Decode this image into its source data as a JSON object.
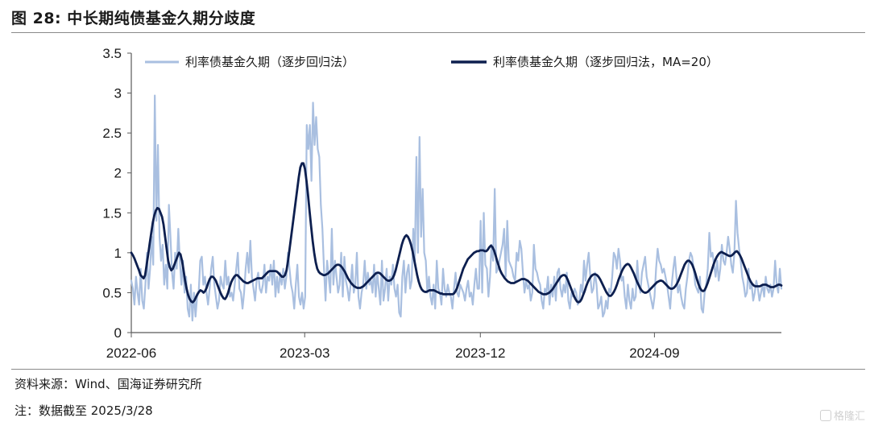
{
  "figure": {
    "title": "图 28:  中长期纯债基金久期分歧度",
    "source": "资料来源：Wind、国海证券研究所",
    "note": "注：数据截至 2025/3/28",
    "watermark": "格隆汇"
  },
  "chart_data": {
    "type": "line",
    "title": "中长期纯债基金久期分歧度",
    "xlabel": "",
    "ylabel": "",
    "ylim": [
      0,
      3.5
    ],
    "yticks": [
      "0",
      "0.5",
      "1",
      "1.5",
      "2",
      "2.5",
      "3",
      "3.5"
    ],
    "xticks": [
      "2022-06",
      "2023-03",
      "2023-12",
      "2024-09"
    ],
    "grid": false,
    "legend_position": "top",
    "colors": {
      "raw": "#a9bfe0",
      "ma": "#0d1f4f"
    },
    "series": [
      {
        "name": "利率债基金久期（逐步回归法）",
        "values": [
          0.65,
          0.55,
          0.35,
          0.7,
          0.5,
          0.35,
          0.8,
          0.4,
          0.3,
          0.6,
          1.0,
          0.55,
          0.8,
          1.2,
          0.85,
          2.97,
          1.4,
          2.35,
          1.2,
          0.9,
          1.1,
          0.6,
          0.85,
          0.55,
          1.6,
          1.2,
          0.75,
          0.55,
          1.0,
          0.8,
          1.3,
          0.9,
          0.6,
          0.9,
          0.5,
          0.7,
          0.3,
          0.2,
          0.6,
          0.15,
          0.5,
          0.2,
          0.45,
          0.5,
          0.9,
          0.95,
          0.6,
          0.7,
          0.5,
          0.35,
          0.55,
          0.8,
          0.95,
          0.6,
          0.45,
          0.3,
          0.4,
          0.7,
          0.6,
          0.55,
          0.9,
          0.6,
          0.7,
          0.45,
          0.5,
          0.4,
          0.6,
          0.8,
          1.0,
          0.55,
          0.5,
          0.3,
          0.5,
          0.8,
          1.0,
          0.75,
          1.15,
          0.7,
          0.55,
          0.4,
          0.65,
          0.75,
          0.55,
          0.5,
          0.6,
          0.85,
          0.5,
          0.7,
          0.65,
          0.85,
          0.6,
          0.9,
          0.45,
          0.7,
          0.5,
          0.75,
          0.6,
          0.8,
          0.55,
          0.7,
          1.0,
          0.8,
          0.6,
          0.5,
          0.3,
          0.6,
          0.85,
          0.45,
          0.35,
          0.5,
          0.3,
          0.45,
          2.6,
          2.3,
          2.6,
          1.9,
          2.88,
          2.35,
          2.7,
          2.3,
          2.2,
          1.6,
          1.3,
          0.8,
          0.4,
          0.9,
          0.7,
          0.5,
          1.3,
          0.6,
          0.9,
          0.7,
          0.5,
          0.6,
          1.0,
          0.45,
          0.95,
          0.65,
          0.55,
          0.4,
          0.6,
          0.85,
          0.5,
          0.6,
          1.0,
          0.45,
          0.3,
          0.5,
          0.6,
          0.9,
          0.55,
          0.75,
          0.6,
          0.65,
          0.5,
          0.85,
          0.45,
          0.75,
          0.55,
          0.35,
          0.9,
          0.4,
          0.55,
          0.8,
          0.4,
          0.7,
          0.6,
          0.85,
          0.55,
          0.45,
          0.6,
          0.25,
          0.2,
          0.7,
          0.9,
          0.5,
          0.75,
          0.85,
          0.55,
          0.65,
          1.3,
          0.9,
          2.2,
          1.0,
          2.45,
          1.2,
          1.8,
          1.0,
          0.9,
          0.5,
          0.7,
          0.45,
          0.35,
          0.6,
          0.3,
          0.9,
          0.55,
          0.5,
          0.35,
          0.8,
          0.55,
          0.45,
          0.6,
          0.5,
          0.45,
          0.3,
          0.55,
          0.75,
          0.5,
          0.45,
          0.6,
          0.55,
          0.5,
          0.4,
          0.55,
          0.65,
          0.45,
          0.5,
          0.35,
          0.6,
          0.8,
          0.55,
          0.55,
          1.4,
          0.5,
          1.5,
          0.85,
          0.8,
          0.45,
          0.7,
          1.1,
          0.9,
          1.8,
          0.75,
          0.8,
          0.9,
          1.0,
          1.1,
          1.3,
          0.7,
          1.4,
          0.9,
          0.85,
          0.8,
          0.7,
          0.65,
          1.0,
          0.9,
          1.15,
          1.05,
          0.75,
          0.5,
          0.65,
          0.55,
          0.6,
          0.4,
          0.5,
          1.1,
          0.8,
          0.75,
          0.65,
          0.6,
          0.4,
          0.3,
          0.55,
          0.5,
          0.7,
          0.35,
          0.6,
          0.45,
          0.7,
          0.4,
          0.75,
          0.8,
          0.55,
          0.45,
          0.6,
          0.5,
          0.75,
          0.4,
          0.3,
          0.5,
          0.45,
          0.55,
          0.5,
          0.35,
          0.4,
          0.6,
          0.5,
          0.9,
          0.65,
          0.85,
          1.0,
          0.7,
          0.5,
          0.55,
          0.75,
          0.6,
          0.3,
          0.35,
          0.45,
          0.2,
          0.25,
          0.4,
          0.3,
          0.55,
          0.5,
          0.7,
          1.0,
          0.95,
          0.8,
          1.05,
          0.9,
          0.65,
          0.7,
          0.45,
          0.3,
          0.6,
          0.4,
          0.3,
          0.55,
          0.4,
          0.45,
          0.9,
          0.6,
          0.5,
          0.75,
          0.85,
          0.95,
          0.7,
          0.6,
          0.5,
          0.4,
          0.3,
          0.45,
          0.8,
          1.05,
          0.9,
          0.85,
          0.75,
          0.8,
          0.7,
          0.6,
          0.45,
          0.3,
          0.6,
          0.8,
          0.95,
          0.7,
          0.5,
          0.6,
          0.45,
          0.35,
          0.3,
          0.55,
          0.7,
          0.9,
          1.0,
          0.95,
          0.8,
          0.6,
          0.55,
          0.5,
          0.7,
          0.3,
          0.25,
          0.5,
          0.6,
          0.8,
          1.25,
          0.95,
          1.0,
          0.85,
          0.7,
          0.9,
          0.65,
          0.8,
          1.1,
          0.9,
          0.85,
          1.0,
          1.2,
          1.05,
          0.85,
          0.75,
          1.0,
          1.65,
          1.25,
          1.05,
          0.9,
          0.7,
          0.6,
          0.45,
          0.5,
          0.8,
          0.55,
          0.6,
          0.4,
          0.5,
          0.65,
          0.55,
          0.4,
          0.5,
          0.6,
          0.45,
          0.7,
          0.55,
          0.5,
          0.6,
          0.45,
          0.55,
          0.9,
          0.6,
          0.5,
          0.8,
          0.55
        ]
      },
      {
        "name": "利率债基金久期（逐步回归法，MA=20）",
        "values": [
          1.0,
          0.97,
          0.93,
          0.88,
          0.83,
          0.78,
          0.72,
          0.7,
          0.68,
          0.72,
          0.85,
          0.98,
          1.12,
          1.25,
          1.38,
          1.47,
          1.53,
          1.56,
          1.55,
          1.5,
          1.45,
          1.35,
          1.2,
          1.05,
          0.9,
          0.82,
          0.78,
          0.8,
          0.85,
          0.9,
          0.95,
          1.0,
          0.98,
          0.9,
          0.78,
          0.65,
          0.55,
          0.47,
          0.42,
          0.39,
          0.38,
          0.4,
          0.44,
          0.48,
          0.51,
          0.53,
          0.52,
          0.5,
          0.52,
          0.56,
          0.62,
          0.67,
          0.7,
          0.7,
          0.68,
          0.65,
          0.6,
          0.55,
          0.5,
          0.46,
          0.43,
          0.42,
          0.45,
          0.5,
          0.57,
          0.63,
          0.67,
          0.7,
          0.72,
          0.72,
          0.7,
          0.68,
          0.66,
          0.64,
          0.63,
          0.62,
          0.62,
          0.63,
          0.64,
          0.65,
          0.66,
          0.67,
          0.68,
          0.68,
          0.68,
          0.68,
          0.7,
          0.72,
          0.74,
          0.76,
          0.77,
          0.77,
          0.77,
          0.77,
          0.77,
          0.76,
          0.74,
          0.72,
          0.7,
          0.7,
          0.72,
          0.78,
          0.9,
          1.05,
          1.2,
          1.35,
          1.5,
          1.65,
          1.8,
          1.95,
          2.07,
          2.12,
          2.12,
          2.05,
          1.9,
          1.72,
          1.52,
          1.33,
          1.15,
          1.0,
          0.88,
          0.8,
          0.76,
          0.74,
          0.73,
          0.72,
          0.72,
          0.73,
          0.74,
          0.76,
          0.78,
          0.8,
          0.82,
          0.84,
          0.85,
          0.85,
          0.84,
          0.82,
          0.79,
          0.76,
          0.72,
          0.68,
          0.65,
          0.62,
          0.6,
          0.58,
          0.57,
          0.56,
          0.56,
          0.56,
          0.57,
          0.58,
          0.6,
          0.62,
          0.64,
          0.66,
          0.68,
          0.7,
          0.72,
          0.74,
          0.75,
          0.75,
          0.74,
          0.72,
          0.7,
          0.68,
          0.66,
          0.65,
          0.65,
          0.66,
          0.68,
          0.72,
          0.78,
          0.86,
          0.94,
          1.02,
          1.1,
          1.16,
          1.2,
          1.22,
          1.2,
          1.16,
          1.1,
          1.02,
          0.92,
          0.82,
          0.72,
          0.64,
          0.58,
          0.54,
          0.52,
          0.51,
          0.51,
          0.52,
          0.53,
          0.53,
          0.53,
          0.53,
          0.52,
          0.51,
          0.5,
          0.49,
          0.49,
          0.48,
          0.48,
          0.48,
          0.48,
          0.48,
          0.48,
          0.48,
          0.49,
          0.52,
          0.56,
          0.62,
          0.68,
          0.74,
          0.8,
          0.84,
          0.88,
          0.92,
          0.94,
          0.96,
          0.98,
          1.0,
          1.01,
          1.02,
          1.02,
          1.03,
          1.03,
          1.03,
          1.02,
          1.02,
          1.04,
          1.07,
          1.09,
          1.07,
          1.03,
          0.97,
          0.9,
          0.84,
          0.78,
          0.74,
          0.71,
          0.68,
          0.66,
          0.64,
          0.63,
          0.62,
          0.62,
          0.62,
          0.63,
          0.64,
          0.65,
          0.66,
          0.67,
          0.67,
          0.67,
          0.66,
          0.65,
          0.63,
          0.61,
          0.59,
          0.57,
          0.55,
          0.53,
          0.51,
          0.5,
          0.49,
          0.48,
          0.48,
          0.48,
          0.49,
          0.5,
          0.52,
          0.54,
          0.57,
          0.6,
          0.63,
          0.66,
          0.69,
          0.71,
          0.72,
          0.72,
          0.7,
          0.66,
          0.61,
          0.56,
          0.51,
          0.46,
          0.42,
          0.39,
          0.38,
          0.39,
          0.42,
          0.47,
          0.52,
          0.58,
          0.63,
          0.67,
          0.7,
          0.72,
          0.73,
          0.73,
          0.72,
          0.7,
          0.67,
          0.63,
          0.59,
          0.55,
          0.51,
          0.48,
          0.46,
          0.46,
          0.48,
          0.51,
          0.55,
          0.6,
          0.66,
          0.71,
          0.76,
          0.8,
          0.83,
          0.85,
          0.86,
          0.85,
          0.82,
          0.78,
          0.74,
          0.69,
          0.64,
          0.6,
          0.56,
          0.53,
          0.51,
          0.5,
          0.5,
          0.51,
          0.53,
          0.55,
          0.57,
          0.59,
          0.61,
          0.63,
          0.64,
          0.65,
          0.65,
          0.64,
          0.62,
          0.6,
          0.58,
          0.56,
          0.55,
          0.55,
          0.56,
          0.58,
          0.61,
          0.65,
          0.7,
          0.75,
          0.8,
          0.85,
          0.88,
          0.9,
          0.9,
          0.88,
          0.85,
          0.8,
          0.74,
          0.67,
          0.61,
          0.56,
          0.53,
          0.52,
          0.53,
          0.57,
          0.62,
          0.68,
          0.74,
          0.8,
          0.86,
          0.91,
          0.95,
          0.98,
          1.0,
          1.01,
          1.0,
          0.99,
          0.98,
          0.97,
          0.96,
          0.96,
          0.97,
          0.99,
          1.01,
          1.02,
          1.0,
          0.97,
          0.93,
          0.88,
          0.83,
          0.78,
          0.73,
          0.68,
          0.64,
          0.61,
          0.59,
          0.58,
          0.58,
          0.58,
          0.58,
          0.59,
          0.6,
          0.6,
          0.6,
          0.59,
          0.58,
          0.57,
          0.57,
          0.57,
          0.58,
          0.59,
          0.6,
          0.6,
          0.59
        ]
      }
    ]
  }
}
